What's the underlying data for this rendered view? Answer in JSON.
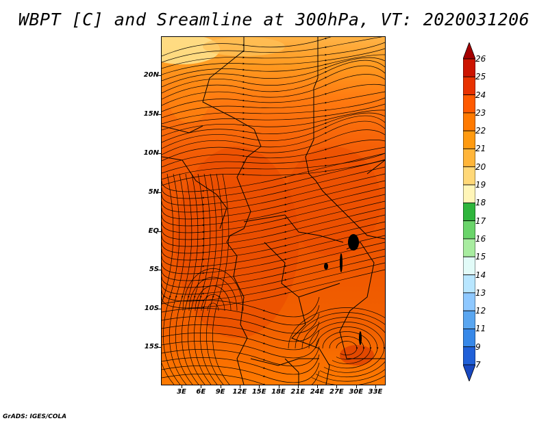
{
  "title": "WBPT [C] and Sreamline at 300hPa, VT: 2020031206",
  "footer": "GrADS: IGES/COLA",
  "map": {
    "region": "East-Central Africa",
    "lat_labels": [
      "20N",
      "15N",
      "10N",
      "5N",
      "EQ",
      "5S",
      "10S",
      "15S"
    ],
    "lon_labels": [
      "3E",
      "6E",
      "9E",
      "12E",
      "15E",
      "18E",
      "21E",
      "24E",
      "27E",
      "30E",
      "33E"
    ],
    "field": "Wet-bulb potential temperature (WBPT) with 300hPa streamlines",
    "colors": {
      "background_dominant": "#ff6a00",
      "warm_core": "#e64a00",
      "cooler_north": "#ffb030"
    }
  },
  "colorbar": {
    "labels": [
      "26",
      "25",
      "24",
      "23",
      "22",
      "21",
      "20",
      "19",
      "18",
      "17",
      "16",
      "15",
      "14",
      "13",
      "12",
      "11",
      "9",
      "7"
    ],
    "colors": [
      "#a50000",
      "#cc1400",
      "#e83200",
      "#ff5a00",
      "#ff7a00",
      "#ff9a10",
      "#ffb53a",
      "#ffd878",
      "#fff5b8",
      "#2fb53c",
      "#6ad46a",
      "#a8eca0",
      "#e2fbf8",
      "#b8e6ff",
      "#8ec8ff",
      "#5aa6f0",
      "#3788e8",
      "#2060d8",
      "#1848c0"
    ]
  }
}
